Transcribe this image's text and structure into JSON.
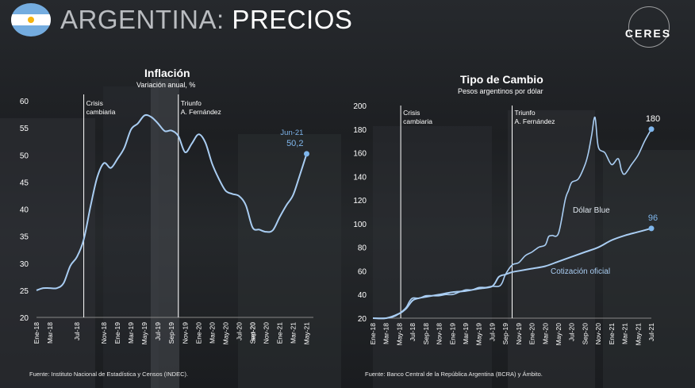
{
  "header": {
    "title_prefix": "ARGENTINA:",
    "title_main": "PRECIOS",
    "logo_text": "CERES"
  },
  "colors": {
    "series": "#a9cdf2",
    "point": "#7fb6ec",
    "vline": "#ffffff"
  },
  "chart_data": [
    {
      "type": "line",
      "title": "Inflación",
      "subtitle": "Variación anual, %",
      "ylim": [
        20,
        60
      ],
      "yticks": [
        20,
        25,
        30,
        35,
        40,
        45,
        50,
        55,
        60
      ],
      "x_labels": [
        "Ene-18",
        "Mar-18",
        "Jul-18",
        "Nov-18",
        "Ene-19",
        "Mar-19",
        "May-19",
        "Jul-19",
        "Sep-19",
        "Nov-19",
        "Ene-20",
        "Mar-20",
        "May-20",
        "Jul-20",
        "Sep-20",
        "set-20",
        "Nov-20",
        "Ene-21",
        "Mar-21",
        "May-21"
      ],
      "x_label_positions": [
        0,
        2,
        6,
        10,
        12,
        14,
        16,
        18,
        20,
        22,
        24,
        26,
        28,
        30,
        32,
        32,
        34,
        36,
        38,
        40
      ],
      "x_range": [
        0,
        41
      ],
      "values": [
        25.0,
        25.4,
        25.4,
        25.4,
        26.3,
        29.5,
        31.2,
        34.4,
        40.5,
        45.9,
        48.5,
        47.6,
        49.3,
        51.3,
        54.7,
        55.8,
        57.3,
        57.0,
        55.8,
        54.4,
        54.5,
        53.5,
        50.5,
        52.1,
        53.8,
        52.3,
        48.4,
        45.6,
        43.4,
        42.8,
        42.4,
        40.7,
        36.6,
        36.2,
        35.8,
        36.1,
        38.5,
        40.7,
        42.6,
        46.3,
        50.2
      ],
      "annotations": [
        {
          "x": 7,
          "label_lines": [
            "Crisis",
            "cambiaria"
          ]
        },
        {
          "x": 21,
          "label_lines": [
            "Triunfo",
            "A. Fernández"
          ]
        }
      ],
      "last_point": {
        "label_lines": [
          "Jun-21",
          "50,2"
        ],
        "value": 50.2
      }
    },
    {
      "type": "line",
      "title": "Tipo de Cambio",
      "subtitle": "Pesos argentinos por dólar",
      "ylim": [
        20,
        200
      ],
      "yticks": [
        20,
        40,
        60,
        80,
        100,
        120,
        140,
        160,
        180,
        200
      ],
      "x_labels": [
        "Ene-18",
        "Mar-18",
        "May-18",
        "Jul-18",
        "Sep-18",
        "Nov-18",
        "Ene-19",
        "Mar-19",
        "May-19",
        "Jul-19",
        "Sep-19",
        "Nov-19",
        "Ene-20",
        "Mar-20",
        "May-20",
        "Jul-20",
        "Sep-20",
        "Nov-20",
        "Ene-21",
        "Mar-21",
        "May-21",
        "Jul-21"
      ],
      "x_label_positions": [
        0,
        2,
        4,
        6,
        8,
        10,
        12,
        14,
        16,
        18,
        20,
        22,
        24,
        26,
        28,
        30,
        32,
        34,
        36,
        38,
        40,
        42
      ],
      "x_range": [
        0,
        42
      ],
      "series": [
        {
          "name": "Dólar Blue",
          "x": [
            0,
            1,
            2,
            3,
            4,
            5,
            5.5,
            6,
            7,
            8,
            9,
            10,
            11,
            12,
            13,
            14,
            15,
            16,
            17,
            18,
            19,
            19.5,
            20,
            21,
            22,
            23,
            24,
            25,
            26,
            26.5,
            27,
            28,
            29,
            29.5,
            30,
            31,
            32,
            32.5,
            33,
            33.5,
            34,
            35,
            36,
            37,
            37.5,
            38,
            39,
            40,
            41,
            42
          ],
          "values": [
            19,
            20,
            20,
            21,
            24,
            29,
            34,
            37,
            37,
            39,
            39,
            39,
            40,
            40,
            42,
            44,
            44,
            46,
            46,
            47,
            47,
            50,
            57,
            65,
            67,
            73,
            76,
            80,
            82,
            89,
            90,
            92,
            120,
            128,
            135,
            138,
            150,
            160,
            175,
            190,
            165,
            160,
            150,
            155,
            145,
            142,
            150,
            158,
            170,
            180
          ]
        },
        {
          "name": "Cotización oficial",
          "x": [
            0,
            2,
            4,
            5,
            6,
            7,
            8,
            10,
            12,
            14,
            16,
            18,
            19,
            20,
            21,
            22,
            24,
            26,
            28,
            30,
            32,
            34,
            36,
            38,
            40,
            42
          ],
          "values": [
            19,
            20,
            24,
            28,
            35,
            37,
            38,
            40,
            42,
            43,
            45,
            47,
            55,
            57,
            59,
            60,
            62,
            64,
            68,
            72,
            76,
            80,
            86,
            90,
            93,
            96
          ]
        }
      ],
      "annotations": [
        {
          "x": 4.2,
          "label_lines": [
            "Crisis",
            "cambiaria"
          ]
        },
        {
          "x": 21,
          "label_lines": [
            "Triunfo",
            "A. Fernández"
          ]
        }
      ],
      "end_labels": [
        "180",
        "96"
      ]
    }
  ],
  "sources": [
    "Fuente: Instituto Nacional de Estadística y Censos (INDEC).",
    "Fuente: Banco Central de la República Argentina (BCRA) y Ámbito."
  ]
}
